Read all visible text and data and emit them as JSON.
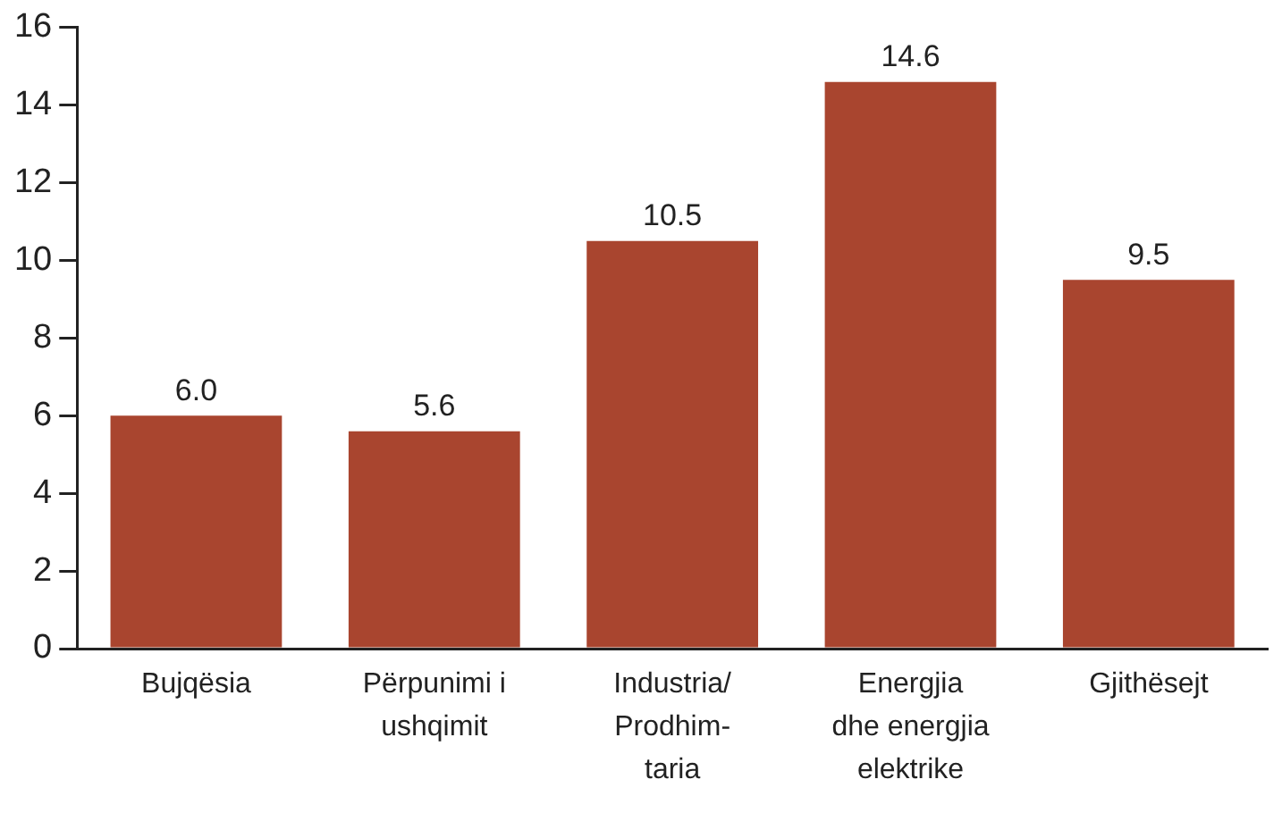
{
  "chart_data": {
    "type": "bar",
    "categories": [
      "Bujqësia",
      "Përpunimi i\nushqimit",
      "Industria/\nProdhim-\ntaria",
      "Energjia\ndhe energjia\nelektrike",
      "Gjithësejt"
    ],
    "values": [
      6.0,
      5.6,
      10.5,
      14.6,
      9.5
    ],
    "value_labels": [
      "6.0",
      "5.6",
      "10.5",
      "14.6",
      "9.5"
    ],
    "color": "#a9452f",
    "ylim": [
      0,
      16
    ],
    "yticks": [
      0,
      2,
      4,
      6,
      8,
      10,
      12,
      14,
      16
    ],
    "grid": false,
    "legend": false
  }
}
